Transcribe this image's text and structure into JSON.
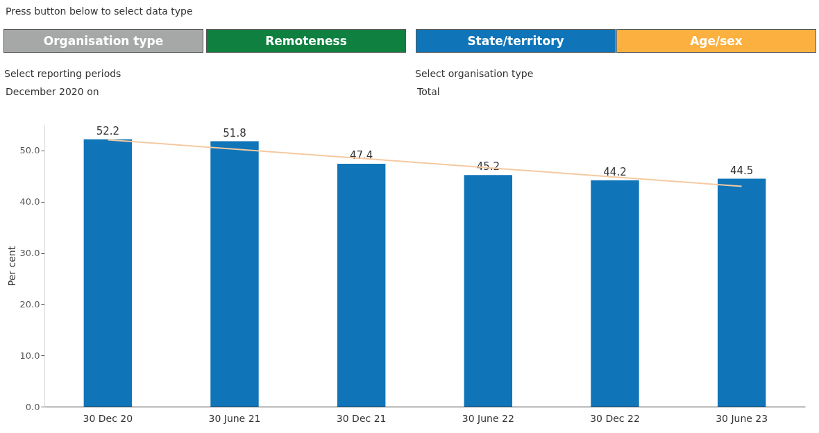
{
  "chart_data": {
    "type": "bar",
    "ylabel": "Per cent",
    "annotations": [
      "Press button below to select data type",
      "Organisation type",
      "Remoteness",
      "State/territory",
      "Age/sex",
      "Select reporting periods",
      "December 2020 on",
      "Select organisation type",
      "Total"
    ],
    "categories": [
      "30 Dec 20",
      "30 June 21",
      "30 Dec 21",
      "30 June 22",
      "30 Dec 22",
      "30 June 23"
    ],
    "series": [
      {
        "color": "#0f75b8",
        "values": [
          52.2,
          51.8,
          47.4,
          45.2,
          44.2,
          44.5
        ],
        "value_labels": [
          "52.2",
          "51.8",
          "47.4",
          "45.2",
          "44.2",
          "44.5"
        ]
      },
      {
        "type": "line",
        "color": "#f5c9a0",
        "x": [
          "30 Dec 20",
          "30 June 23"
        ],
        "values": [
          52.1,
          43.0
        ]
      }
    ],
    "ylim": [
      0,
      55
    ],
    "yticks": [
      {
        "value": 0,
        "label": "0.0"
      },
      {
        "value": 10,
        "label": "10.0"
      },
      {
        "value": 20,
        "label": "20.0"
      },
      {
        "value": 30,
        "label": "30.0"
      },
      {
        "value": 40,
        "label": "40.0"
      },
      {
        "value": 50,
        "label": "50.0"
      }
    ],
    "grid": false
  }
}
